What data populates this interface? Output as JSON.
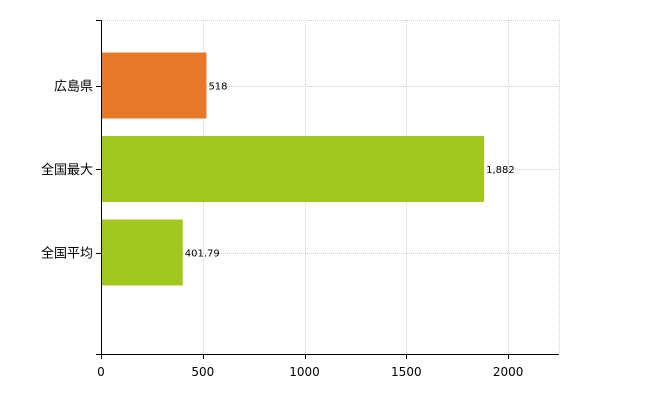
{
  "chart_data": {
    "type": "bar",
    "orientation": "horizontal",
    "categories": [
      "広島県",
      "全国最大",
      "全国平均"
    ],
    "values": [
      518,
      1882,
      401.79
    ],
    "data_labels": [
      "518",
      "1,882",
      "401.79"
    ],
    "colors": [
      "#e6792a",
      "#a2c81f",
      "#a2c81f"
    ],
    "x_ticks": [
      0,
      500,
      1000,
      1500,
      2000
    ],
    "x_tick_labels": [
      "0",
      "500",
      "1000",
      "1500",
      "2000"
    ],
    "xlim": [
      0,
      2250
    ],
    "title": "",
    "xlabel": "",
    "ylabel": "",
    "grid": true,
    "legend": "none"
  }
}
